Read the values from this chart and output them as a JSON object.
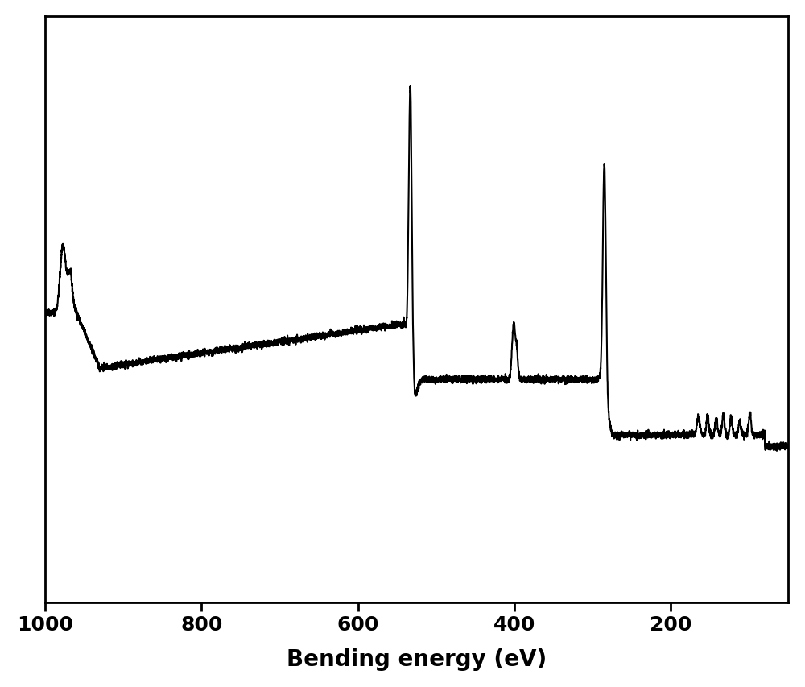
{
  "xlabel": "Bending energy (eV)",
  "ylabel": "",
  "xlim": [
    1000,
    50
  ],
  "xticks": [
    1000,
    800,
    600,
    400,
    200
  ],
  "line_color": "#000000",
  "background_color": "#ffffff",
  "xlabel_fontsize": 20,
  "xlabel_fontweight": "bold",
  "tick_fontsize": 18,
  "tick_fontweight": "bold",
  "linewidth": 1.5
}
